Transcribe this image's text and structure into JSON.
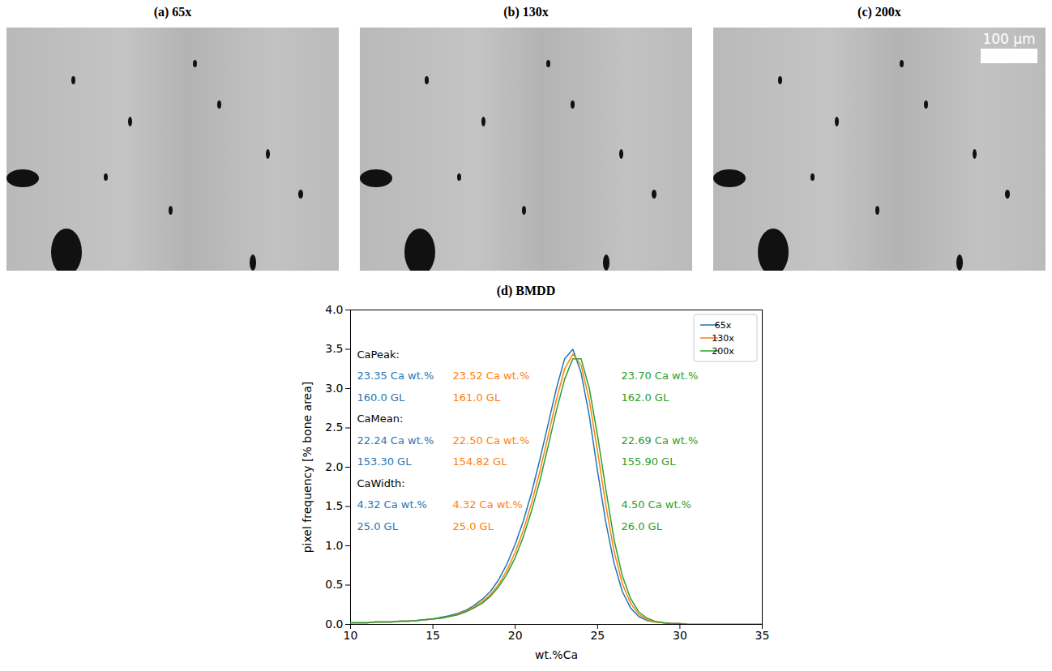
{
  "images": [
    {
      "title": "(a) 65x"
    },
    {
      "title": "(b) 130x"
    },
    {
      "title": "(c) 200x",
      "scale_bar": "100 µm"
    }
  ],
  "chart_data": {
    "type": "line",
    "title": "(d) BMDD",
    "x_label": "wt.%Ca",
    "y_label": "pixel frequency [% bone area]",
    "x": [
      10,
      10.5,
      11,
      11.5,
      12,
      12.5,
      13,
      13.5,
      14,
      14.5,
      15,
      15.5,
      16,
      16.5,
      17,
      17.5,
      18,
      18.5,
      19,
      19.5,
      20,
      20.5,
      21,
      21.5,
      22,
      22.5,
      23,
      23.5,
      24,
      24.5,
      25,
      25.5,
      26,
      26.5,
      27,
      27.5,
      28,
      28.5,
      29,
      29.5,
      30,
      30.5,
      31,
      31.5,
      32,
      32.5,
      33,
      33.5,
      34,
      34.5,
      35
    ],
    "series": [
      {
        "name": "65x",
        "color": "#1f77b4",
        "values": [
          0.02,
          0.02,
          0.02,
          0.03,
          0.03,
          0.03,
          0.04,
          0.04,
          0.05,
          0.06,
          0.07,
          0.09,
          0.11,
          0.14,
          0.18,
          0.24,
          0.32,
          0.42,
          0.57,
          0.77,
          1.02,
          1.32,
          1.68,
          2.1,
          2.55,
          3.0,
          3.38,
          3.5,
          3.2,
          2.65,
          1.95,
          1.3,
          0.78,
          0.42,
          0.21,
          0.1,
          0.05,
          0.03,
          0.02,
          0.01,
          0.01,
          0,
          0,
          0,
          0,
          0,
          0,
          0,
          0,
          0,
          0
        ]
      },
      {
        "name": "130x",
        "color": "#ff7f0e",
        "values": [
          0.02,
          0.02,
          0.02,
          0.03,
          0.03,
          0.03,
          0.04,
          0.04,
          0.05,
          0.06,
          0.07,
          0.08,
          0.1,
          0.13,
          0.17,
          0.22,
          0.29,
          0.38,
          0.51,
          0.69,
          0.92,
          1.2,
          1.55,
          1.95,
          2.4,
          2.86,
          3.25,
          3.44,
          3.3,
          2.85,
          2.2,
          1.52,
          0.93,
          0.52,
          0.27,
          0.13,
          0.06,
          0.03,
          0.02,
          0.01,
          0.01,
          0,
          0,
          0,
          0,
          0,
          0,
          0,
          0,
          0,
          0
        ]
      },
      {
        "name": "200x",
        "color": "#2ca02c",
        "values": [
          0.02,
          0.02,
          0.02,
          0.03,
          0.03,
          0.03,
          0.04,
          0.04,
          0.05,
          0.06,
          0.07,
          0.08,
          0.1,
          0.12,
          0.16,
          0.21,
          0.27,
          0.36,
          0.48,
          0.64,
          0.85,
          1.12,
          1.45,
          1.83,
          2.27,
          2.72,
          3.12,
          3.38,
          3.38,
          3.0,
          2.4,
          1.72,
          1.08,
          0.62,
          0.33,
          0.16,
          0.08,
          0.04,
          0.02,
          0.01,
          0.01,
          0,
          0,
          0,
          0,
          0,
          0,
          0,
          0,
          0,
          0
        ]
      }
    ],
    "xlim": [
      10,
      35
    ],
    "xticks": [
      10,
      15,
      20,
      25,
      30,
      35
    ],
    "ylim": [
      0,
      4
    ],
    "yticks": [
      {
        "value": 0,
        "label": "0.0"
      },
      {
        "value": 0.5,
        "label": "0.5"
      },
      {
        "value": 1,
        "label": "1.0"
      },
      {
        "value": 1.5,
        "label": "1.5"
      },
      {
        "value": 2,
        "label": "2.0"
      },
      {
        "value": 2.5,
        "label": "2.5"
      },
      {
        "value": 3,
        "label": "3.0"
      },
      {
        "value": 3.5,
        "label": "3.5"
      },
      {
        "value": 4,
        "label": "4.0"
      }
    ],
    "legend": "upper right",
    "annotations": [
      {
        "text": "CaPeak:",
        "rows": [
          [
            "23.35 Ca wt.%",
            "23.52 Ca wt.%",
            "23.70 Ca wt.%"
          ],
          [
            "160.0 GL",
            "161.0 GL",
            "162.0 GL"
          ]
        ]
      },
      {
        "text": "CaMean:",
        "rows": [
          [
            "22.24 Ca wt.%",
            "22.50 Ca wt.%",
            "22.69 Ca wt.%"
          ],
          [
            "153.30 GL",
            "154.82 GL",
            "155.90 GL"
          ]
        ]
      },
      {
        "text": "CaWidth:",
        "rows": [
          [
            "4.32 Ca wt.%",
            "4.32 Ca wt.%",
            "4.50 Ca wt.%"
          ],
          [
            "25.0 GL",
            "25.0 GL",
            "26.0 GL"
          ]
        ]
      }
    ]
  }
}
